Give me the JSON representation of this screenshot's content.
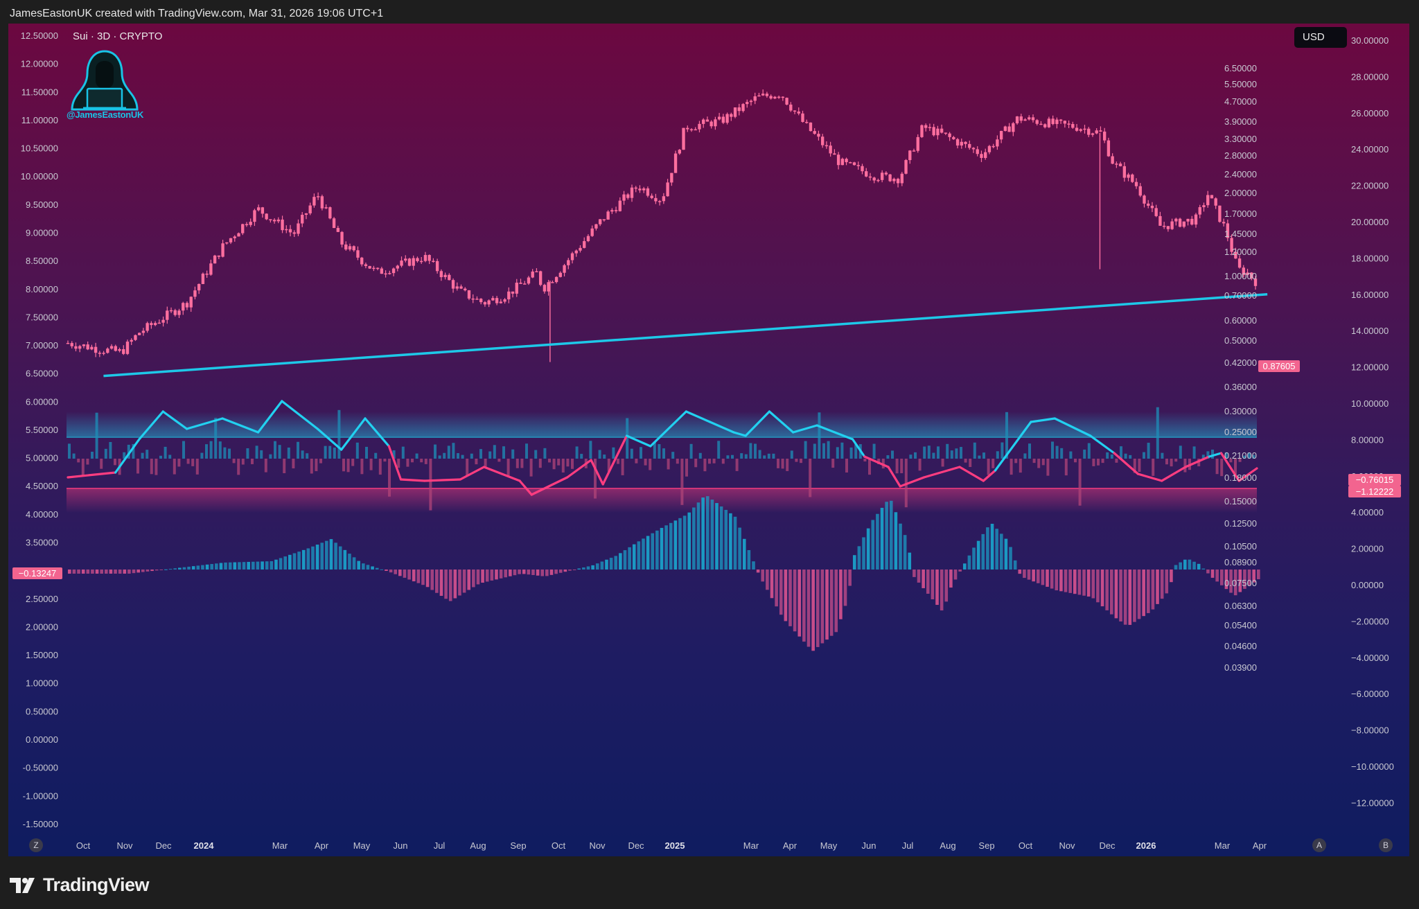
{
  "header": {
    "text": "JamesEastonUK created with TradingView.com, Mar 31, 2026 19:06 UTC+1"
  },
  "footer": {
    "brand": "TradingView"
  },
  "chart_header": {
    "symbol": "Sui · 3D · CRYPTO",
    "currency_button": "USD",
    "watermark_handle": "@JamesEastonUK",
    "watermark_icon": "hooded-hacker-icon"
  },
  "bottom_buttons": {
    "left": "Z",
    "auto": "A",
    "right": "B"
  },
  "colors": {
    "candle": "#ff6f9f",
    "trendline": "#1ec8e8",
    "oscillator_up": "#22d1f0",
    "oscillator_down": "#ff3d80",
    "hist_pos": "#1aa0c8",
    "hist_neg": "#d0508c"
  },
  "chart_data": {
    "type": "candlestick",
    "title": "Sui · 3D · CRYPTO",
    "x_ticks": [
      "Oct",
      "Nov",
      "Dec",
      "2024",
      "Mar",
      "Apr",
      "May",
      "Jun",
      "Jul",
      "Aug",
      "Sep",
      "Oct",
      "Nov",
      "Dec",
      "2025",
      "Mar",
      "Apr",
      "May",
      "Jun",
      "Jul",
      "Aug",
      "Sep",
      "Oct",
      "Nov",
      "Dec",
      "2026",
      "Mar",
      "Apr"
    ],
    "left_axis_ticks": [
      "12.50000",
      "12.00000",
      "11.50000",
      "11.00000",
      "10.50000",
      "10.00000",
      "9.50000",
      "9.00000",
      "8.50000",
      "8.00000",
      "7.50000",
      "7.00000",
      "6.50000",
      "6.00000",
      "5.50000",
      "5.00000",
      "4.50000",
      "4.00000",
      "3.50000",
      "3.00000",
      "2.50000",
      "2.00000",
      "1.50000",
      "1.00000",
      "0.50000",
      "0.00000",
      "-0.50000",
      "-1.00000",
      "-1.50000"
    ],
    "price_axis_ticks": [
      "6.50000",
      "5.50000",
      "4.70000",
      "3.90000",
      "3.30000",
      "2.80000",
      "2.40000",
      "2.00000",
      "1.70000",
      "1.45000",
      "1.20000",
      "1.00000",
      "0.70000",
      "0.60000",
      "0.50000",
      "0.42000",
      "0.36000",
      "0.30000",
      "0.25000",
      "0.21000",
      "0.18000",
      "0.15000",
      "0.12500",
      "0.10500",
      "0.08900",
      "0.07500",
      "0.06300",
      "0.05400",
      "0.04600",
      "0.03900"
    ],
    "right_axis_ticks": [
      "30.00000",
      "28.00000",
      "26.00000",
      "24.00000",
      "22.00000",
      "20.00000",
      "18.00000",
      "16.00000",
      "14.00000",
      "12.00000",
      "10.00000",
      "8.00000",
      "6.00000",
      "4.00000",
      "2.00000",
      "0.00000",
      "−2.00000",
      "−4.00000",
      "−6.00000",
      "−8.00000",
      "−10.00000",
      "−12.00000"
    ],
    "price_scale": "log",
    "current_price_label": "0.87605",
    "oscillator_labels": [
      "−0.76015",
      "−1.12222"
    ],
    "histogram_label": "−0.13247",
    "price_path": [
      {
        "t": 0.0,
        "v": 0.5
      },
      {
        "t": 0.03,
        "v": 0.47
      },
      {
        "t": 0.045,
        "v": 0.46
      },
      {
        "t": 0.06,
        "v": 0.55
      },
      {
        "t": 0.1,
        "v": 0.72
      },
      {
        "t": 0.13,
        "v": 1.2
      },
      {
        "t": 0.16,
        "v": 1.7
      },
      {
        "t": 0.19,
        "v": 1.35
      },
      {
        "t": 0.21,
        "v": 1.95
      },
      {
        "t": 0.23,
        "v": 1.25
      },
      {
        "t": 0.26,
        "v": 0.95
      },
      {
        "t": 0.3,
        "v": 1.1
      },
      {
        "t": 0.33,
        "v": 0.8
      },
      {
        "t": 0.35,
        "v": 0.72
      },
      {
        "t": 0.37,
        "v": 0.78
      },
      {
        "t": 0.395,
        "v": 0.95
      },
      {
        "t": 0.4,
        "v": 0.82
      },
      {
        "t": 0.42,
        "v": 1.05
      },
      {
        "t": 0.45,
        "v": 1.55
      },
      {
        "t": 0.48,
        "v": 2.1
      },
      {
        "t": 0.5,
        "v": 1.85
      },
      {
        "t": 0.52,
        "v": 3.6
      },
      {
        "t": 0.55,
        "v": 3.8
      },
      {
        "t": 0.58,
        "v": 4.7
      },
      {
        "t": 0.6,
        "v": 4.9
      },
      {
        "t": 0.62,
        "v": 3.7
      },
      {
        "t": 0.65,
        "v": 2.6
      },
      {
        "t": 0.68,
        "v": 2.3
      },
      {
        "t": 0.7,
        "v": 2.25
      },
      {
        "t": 0.72,
        "v": 3.6
      },
      {
        "t": 0.74,
        "v": 3.3
      },
      {
        "t": 0.77,
        "v": 2.8
      },
      {
        "t": 0.8,
        "v": 3.9
      },
      {
        "t": 0.83,
        "v": 3.7
      },
      {
        "t": 0.85,
        "v": 3.6
      },
      {
        "t": 0.87,
        "v": 3.4
      },
      {
        "t": 0.88,
        "v": 2.6
      },
      {
        "t": 0.9,
        "v": 2.1
      },
      {
        "t": 0.92,
        "v": 1.45
      },
      {
        "t": 0.95,
        "v": 1.55
      },
      {
        "t": 0.96,
        "v": 1.95
      },
      {
        "t": 0.975,
        "v": 1.4
      },
      {
        "t": 0.985,
        "v": 0.98
      },
      {
        "t": 0.993,
        "v": 0.95
      },
      {
        "t": 1.0,
        "v": 0.88
      }
    ],
    "trendline": {
      "start": {
        "t": 0.03,
        "v": 0.37
      },
      "end": {
        "t": 1.01,
        "v": 0.78
      }
    }
  }
}
